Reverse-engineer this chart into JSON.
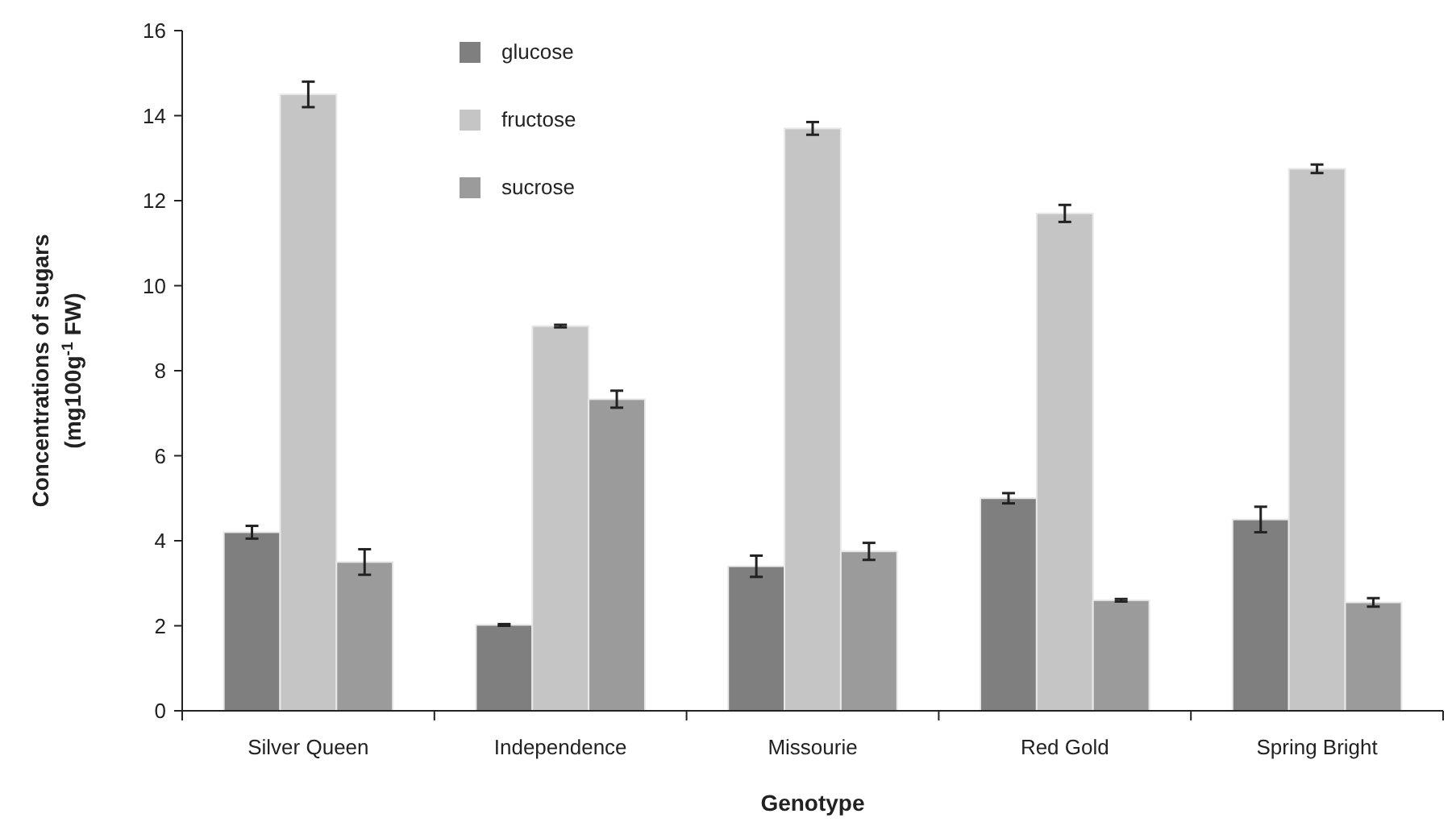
{
  "chart_data": {
    "type": "bar",
    "xlabel": "Genotype",
    "ylabel": "Concentrations of sugars\n(mg100g$^{-1}$ FW)",
    "categories": [
      "Silver Queen",
      "Independence",
      "Missourie",
      "Red Gold",
      "Spring Bright"
    ],
    "series": [
      {
        "name": "glucose",
        "color": "#7f7f7f",
        "values": [
          4.2,
          2.02,
          3.4,
          5.0,
          4.5
        ],
        "errors": [
          0.15,
          0.02,
          0.25,
          0.12,
          0.3
        ]
      },
      {
        "name": "fructose",
        "color": "#c4c5c4",
        "values": [
          14.5,
          9.05,
          13.7,
          11.7,
          12.75
        ],
        "errors": [
          0.3,
          0.03,
          0.15,
          0.2,
          0.1
        ]
      },
      {
        "name": "sucrose",
        "color": "#9a9b9a",
        "values": [
          3.5,
          7.33,
          3.75,
          2.6,
          2.55
        ],
        "errors": [
          0.3,
          0.2,
          0.2,
          0.03,
          0.1
        ]
      }
    ],
    "ylim": [
      0,
      16
    ],
    "yticks": [
      0,
      2,
      4,
      6,
      8,
      10,
      12,
      14,
      16
    ],
    "grid": false,
    "legend": "top"
  }
}
